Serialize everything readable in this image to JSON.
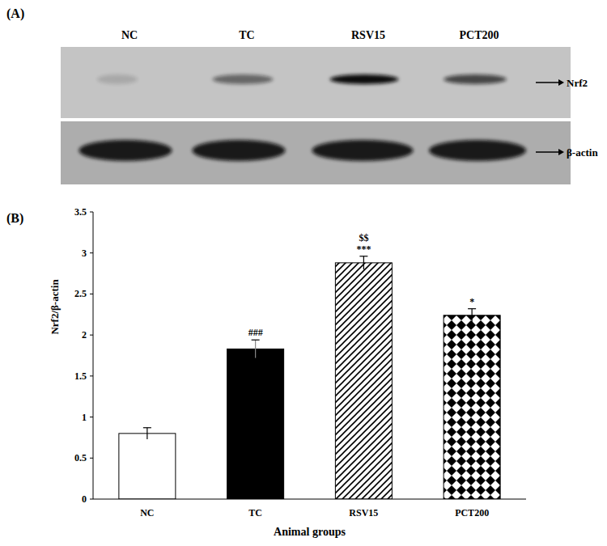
{
  "blot": {
    "panel_label": "(A)",
    "lanes": [
      "NC",
      "TC",
      "RSV15",
      "PCT200"
    ],
    "bands": [
      "Nrf2",
      "β-actin"
    ]
  },
  "chart_data": {
    "type": "bar",
    "title": "(B)",
    "categories": [
      "NC",
      "TC",
      "RSV15",
      "PCT200"
    ],
    "values": [
      0.8,
      1.83,
      2.88,
      2.24
    ],
    "errors": [
      0.07,
      0.11,
      0.08,
      0.08
    ],
    "annotations": [
      null,
      [
        "###"
      ],
      [
        "$$",
        "***"
      ],
      [
        "*"
      ]
    ],
    "x_label": "Animal groups",
    "y_label": "Nrf2/β-actin",
    "ylim": [
      0,
      3.5
    ],
    "yticks": [
      0,
      0.5,
      1,
      1.5,
      2,
      2.5,
      3,
      3.5
    ],
    "grid": false
  }
}
